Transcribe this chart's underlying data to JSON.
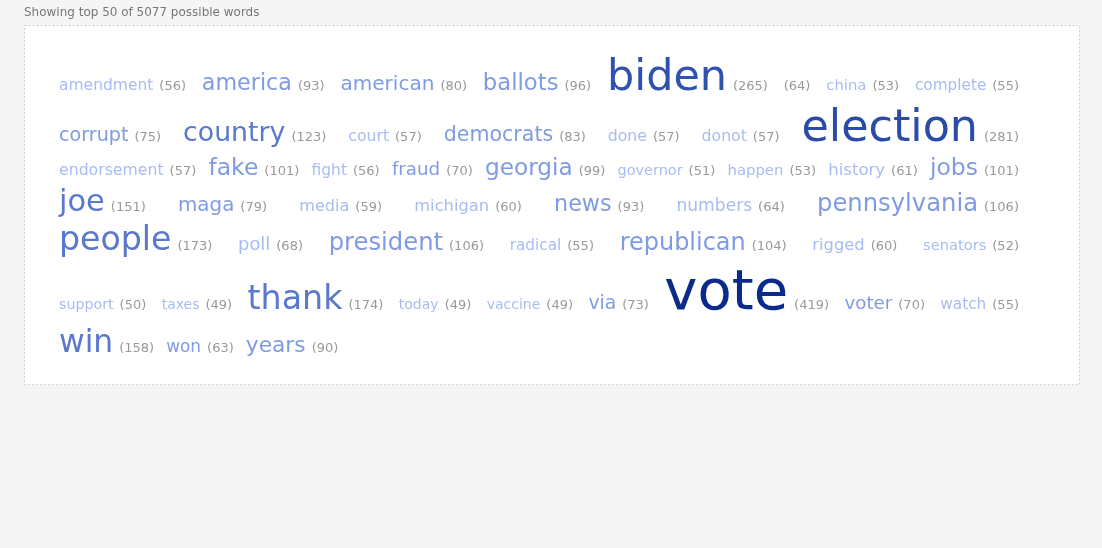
{
  "chart_data": {
    "type": "other",
    "title": "Showing top 50 of 5077 possible words",
    "categories": [
      "amendment",
      "america",
      "american",
      "ballots",
      "biden",
      null,
      "china",
      "complete",
      "corrupt",
      "country",
      "court",
      "democrats",
      "done",
      "donot",
      "election",
      "endorsement",
      "fake",
      "fight",
      "fraud",
      "georgia",
      "governor",
      "happen",
      "history",
      "jobs",
      "joe",
      "maga",
      "media",
      "michigan",
      "news",
      "numbers",
      "pennsylvania",
      "people",
      "poll",
      "president",
      "radical",
      "republican",
      "rigged",
      "senators",
      "support",
      "taxes",
      "thank",
      "today",
      "vaccine",
      "via",
      "vote",
      "voter",
      "watch",
      "win",
      "won",
      "years"
    ],
    "values": [
      56,
      93,
      80,
      96,
      265,
      64,
      53,
      55,
      75,
      123,
      57,
      83,
      57,
      57,
      281,
      57,
      101,
      56,
      70,
      99,
      51,
      53,
      61,
      101,
      151,
      79,
      59,
      60,
      93,
      64,
      106,
      173,
      68,
      106,
      55,
      104,
      60,
      52,
      50,
      49,
      174,
      49,
      49,
      73,
      419,
      70,
      55,
      158,
      63,
      90
    ],
    "colors": [
      "#a6bcf2",
      "#7f9be2",
      "#7f9be2",
      "#7f9be2",
      "#2f51b0",
      "#a6bcf2",
      "#a6bcf2",
      "#a6bcf2",
      "#7f9be2",
      "#5a78cc",
      "#a6bcf2",
      "#7f9be2",
      "#a6bcf2",
      "#a6bcf2",
      "#2a4ca8",
      "#a6bcf2",
      "#7f9be2",
      "#a6bcf2",
      "#7f9be2",
      "#7f9be2",
      "#a6bcf2",
      "#a6bcf2",
      "#a6bcf2",
      "#7f9be2",
      "#5a78cc",
      "#7f9be2",
      "#a6bcf2",
      "#a6bcf2",
      "#7f9be2",
      "#a6bcf2",
      "#7f9be2",
      "#5a78cc",
      "#a6bcf2",
      "#7f9be2",
      "#a6bcf2",
      "#7f9be2",
      "#a6bcf2",
      "#a6bcf2",
      "#a6bcf2",
      "#a6bcf2",
      "#5a78cc",
      "#a6bcf2",
      "#a6bcf2",
      "#7f9be2",
      "#0a2a8c",
      "#7f9be2",
      "#a6bcf2",
      "#5a78cc",
      "#7f9be2",
      "#7f9be2"
    ],
    "value_labels": [
      "(56)",
      "(93)",
      "(80)",
      "(96)",
      "(265)",
      "(64)",
      "(53)",
      "(55)",
      "(75)",
      "(123)",
      "(57)",
      "(83)",
      "(57)",
      "(57)",
      "(281)",
      "(57)",
      "(101)",
      "(56)",
      "(70)",
      "(99)",
      "(51)",
      "(53)",
      "(61)",
      "(101)",
      "(151)",
      "(79)",
      "(59)",
      "(60)",
      "(93)",
      "(64)",
      "(106)",
      "(173)",
      "(68)",
      "(106)",
      "(55)",
      "(104)",
      "(60)",
      "(52)",
      "(50)",
      "(49)",
      "(174)",
      "(49)",
      "(49)",
      "(73)",
      "(419)",
      "(70)",
      "(55)",
      "(158)",
      "(63)",
      "(90)"
    ]
  }
}
